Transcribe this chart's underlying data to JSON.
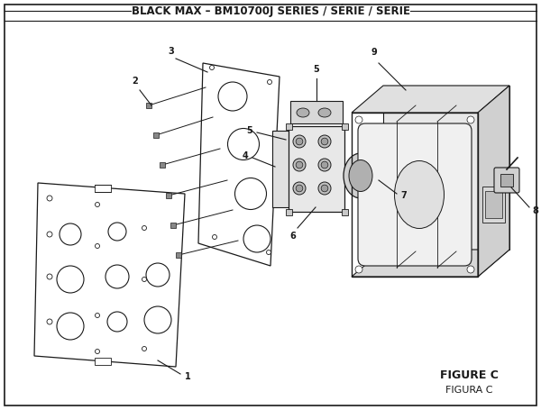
{
  "title": "BLACK MAX – BM10700J SERIES / SÉRIE / SERIE",
  "figure_label": "FIGURE C",
  "figure_label2": "FIGURA C",
  "bg_color": "#ffffff",
  "line_color": "#1a1a1a",
  "title_fontsize": 8.5,
  "figure_label_fontsize": 9
}
